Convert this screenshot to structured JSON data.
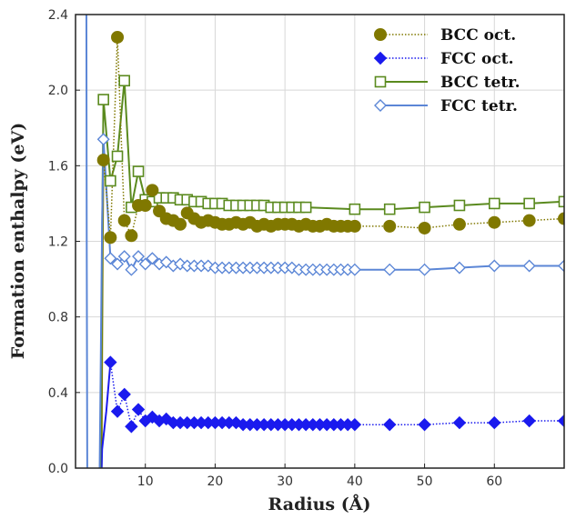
{
  "chart_data": {
    "type": "line",
    "title": "",
    "xlabel": "Radius (Å)",
    "ylabel": "Formation enthalpy (eV)",
    "xlim": [
      0,
      70
    ],
    "ylim": [
      0,
      2.4
    ],
    "x_ticks": [
      10,
      20,
      30,
      40,
      50,
      60
    ],
    "y_ticks": [
      "0.0",
      "0.4",
      "0.8",
      "1.2",
      "1.6",
      "2.0",
      "2.4"
    ],
    "grid": true,
    "legend_position": "top-right",
    "series": [
      {
        "name": "BCC oct.",
        "color": "#807800",
        "marker": "filled-circle",
        "line_style": "dotted",
        "points": [
          [
            4,
            1.63
          ],
          [
            5,
            1.22
          ],
          [
            6,
            2.28
          ],
          [
            7,
            1.31
          ],
          [
            8,
            1.23
          ],
          [
            9,
            1.39
          ],
          [
            10,
            1.39
          ],
          [
            11,
            1.47
          ],
          [
            12,
            1.36
          ],
          [
            13,
            1.32
          ],
          [
            14,
            1.31
          ],
          [
            15,
            1.29
          ],
          [
            16,
            1.35
          ],
          [
            17,
            1.32
          ],
          [
            18,
            1.3
          ],
          [
            19,
            1.31
          ],
          [
            20,
            1.3
          ],
          [
            21,
            1.29
          ],
          [
            22,
            1.29
          ],
          [
            23,
            1.3
          ],
          [
            24,
            1.29
          ],
          [
            25,
            1.3
          ],
          [
            26,
            1.28
          ],
          [
            27,
            1.29
          ],
          [
            28,
            1.28
          ],
          [
            29,
            1.29
          ],
          [
            30,
            1.29
          ],
          [
            31,
            1.29
          ],
          [
            32,
            1.28
          ],
          [
            33,
            1.29
          ],
          [
            34,
            1.28
          ],
          [
            35,
            1.28
          ],
          [
            36,
            1.29
          ],
          [
            37,
            1.28
          ],
          [
            38,
            1.28
          ],
          [
            39,
            1.28
          ],
          [
            40,
            1.28
          ],
          [
            45,
            1.28
          ],
          [
            50,
            1.27
          ],
          [
            55,
            1.29
          ],
          [
            60,
            1.3
          ],
          [
            65,
            1.31
          ],
          [
            70,
            1.32
          ]
        ]
      },
      {
        "name": "FCC oct.",
        "color": "#1a1aee",
        "marker": "filled-diamond",
        "line_style": "dotted",
        "points": [
          [
            5,
            0.56
          ],
          [
            6,
            0.3
          ],
          [
            7,
            0.39
          ],
          [
            8,
            0.22
          ],
          [
            9,
            0.31
          ],
          [
            10,
            0.25
          ],
          [
            11,
            0.27
          ],
          [
            12,
            0.25
          ],
          [
            13,
            0.26
          ],
          [
            14,
            0.24
          ],
          [
            15,
            0.24
          ],
          [
            16,
            0.24
          ],
          [
            17,
            0.24
          ],
          [
            18,
            0.24
          ],
          [
            19,
            0.24
          ],
          [
            20,
            0.24
          ],
          [
            21,
            0.24
          ],
          [
            22,
            0.24
          ],
          [
            23,
            0.24
          ],
          [
            24,
            0.23
          ],
          [
            25,
            0.23
          ],
          [
            26,
            0.23
          ],
          [
            27,
            0.23
          ],
          [
            28,
            0.23
          ],
          [
            29,
            0.23
          ],
          [
            30,
            0.23
          ],
          [
            31,
            0.23
          ],
          [
            32,
            0.23
          ],
          [
            33,
            0.23
          ],
          [
            34,
            0.23
          ],
          [
            35,
            0.23
          ],
          [
            36,
            0.23
          ],
          [
            37,
            0.23
          ],
          [
            38,
            0.23
          ],
          [
            39,
            0.23
          ],
          [
            40,
            0.23
          ],
          [
            45,
            0.23
          ],
          [
            50,
            0.23
          ],
          [
            55,
            0.24
          ],
          [
            60,
            0.24
          ],
          [
            65,
            0.25
          ],
          [
            70,
            0.25
          ]
        ]
      },
      {
        "name": "BCC tetr.",
        "color": "#5a8a1e",
        "marker": "open-square",
        "line_style": "solid",
        "points": [
          [
            4,
            1.95
          ],
          [
            5,
            1.52
          ],
          [
            6,
            1.65
          ],
          [
            7,
            2.05
          ],
          [
            8,
            1.38
          ],
          [
            9,
            1.57
          ],
          [
            10,
            1.42
          ],
          [
            11,
            1.41
          ],
          [
            12,
            1.43
          ],
          [
            13,
            1.43
          ],
          [
            14,
            1.43
          ],
          [
            15,
            1.42
          ],
          [
            16,
            1.42
          ],
          [
            17,
            1.41
          ],
          [
            18,
            1.41
          ],
          [
            19,
            1.4
          ],
          [
            20,
            1.4
          ],
          [
            21,
            1.4
          ],
          [
            22,
            1.39
          ],
          [
            23,
            1.39
          ],
          [
            24,
            1.39
          ],
          [
            25,
            1.39
          ],
          [
            26,
            1.39
          ],
          [
            27,
            1.39
          ],
          [
            28,
            1.38
          ],
          [
            29,
            1.38
          ],
          [
            30,
            1.38
          ],
          [
            31,
            1.38
          ],
          [
            32,
            1.38
          ],
          [
            33,
            1.38
          ],
          [
            40,
            1.37
          ],
          [
            45,
            1.37
          ],
          [
            50,
            1.38
          ],
          [
            55,
            1.39
          ],
          [
            60,
            1.4
          ],
          [
            65,
            1.4
          ],
          [
            70,
            1.41
          ]
        ]
      },
      {
        "name": "FCC tetr.",
        "color": "#5b86d6",
        "marker": "open-diamond",
        "line_style": "solid",
        "points": [
          [
            4,
            1.74
          ],
          [
            5,
            1.11
          ],
          [
            6,
            1.08
          ],
          [
            7,
            1.12
          ],
          [
            8,
            1.05
          ],
          [
            9,
            1.12
          ],
          [
            10,
            1.08
          ],
          [
            11,
            1.11
          ],
          [
            12,
            1.08
          ],
          [
            13,
            1.09
          ],
          [
            14,
            1.07
          ],
          [
            15,
            1.08
          ],
          [
            16,
            1.07
          ],
          [
            17,
            1.07
          ],
          [
            18,
            1.07
          ],
          [
            19,
            1.07
          ],
          [
            20,
            1.06
          ],
          [
            21,
            1.06
          ],
          [
            22,
            1.06
          ],
          [
            23,
            1.06
          ],
          [
            24,
            1.06
          ],
          [
            25,
            1.06
          ],
          [
            26,
            1.06
          ],
          [
            27,
            1.06
          ],
          [
            28,
            1.06
          ],
          [
            29,
            1.06
          ],
          [
            30,
            1.06
          ],
          [
            31,
            1.06
          ],
          [
            32,
            1.05
          ],
          [
            33,
            1.05
          ],
          [
            34,
            1.05
          ],
          [
            35,
            1.05
          ],
          [
            36,
            1.05
          ],
          [
            37,
            1.05
          ],
          [
            38,
            1.05
          ],
          [
            39,
            1.05
          ],
          [
            40,
            1.05
          ],
          [
            45,
            1.05
          ],
          [
            50,
            1.05
          ],
          [
            55,
            1.06
          ],
          [
            60,
            1.07
          ],
          [
            65,
            1.07
          ],
          [
            70,
            1.07
          ]
        ]
      }
    ],
    "left_curves": [
      {
        "series": "BCC oct.",
        "color": "#807800",
        "points": [
          [
            3.7,
            -0.2
          ],
          [
            3.8,
            0.6
          ],
          [
            3.9,
            1.2
          ],
          [
            4,
            1.63
          ]
        ]
      },
      {
        "series": "FCC oct.",
        "color": "#1a1aee",
        "points": [
          [
            3.6,
            -0.2
          ],
          [
            3.8,
            0.1
          ],
          [
            4.4,
            0.3
          ],
          [
            5,
            0.56
          ]
        ]
      },
      {
        "series": "BCC tetr.",
        "color": "#5a8a1e",
        "points": [
          [
            3.5,
            -0.2
          ],
          [
            3.7,
            0.6
          ],
          [
            3.85,
            1.4
          ],
          [
            4,
            1.95
          ]
        ]
      },
      {
        "series": "FCC tetr.",
        "color": "#5b86d6",
        "points": [
          [
            1.55,
            2.6
          ],
          [
            1.6,
            1.2
          ],
          [
            1.7,
            -0.2
          ]
        ]
      },
      {
        "series": "FCC tetr.",
        "color": "#5b86d6",
        "points": [
          [
            3.4,
            -0.2
          ],
          [
            3.6,
            0.5
          ],
          [
            3.8,
            1.3
          ],
          [
            4,
            1.74
          ]
        ]
      }
    ]
  }
}
